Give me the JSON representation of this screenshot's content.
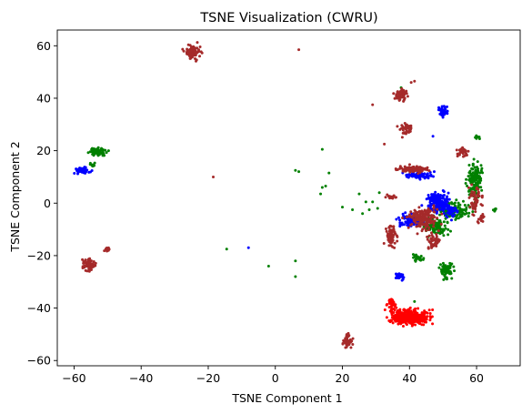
{
  "chart_data": {
    "type": "scatter",
    "title": "TSNE Visualization (CWRU)",
    "xlabel": "TSNE Component 1",
    "ylabel": "TSNE Component 2",
    "xlim": [
      -65,
      73
    ],
    "ylim": [
      -62,
      66
    ],
    "xticks": [
      -60,
      -40,
      -20,
      0,
      20,
      40,
      60
    ],
    "yticks": [
      -60,
      -40,
      -20,
      0,
      20,
      40,
      60
    ],
    "grid": false,
    "colors": {
      "red": "#ff0000",
      "green": "#008000",
      "blue": "#0000ff",
      "brown": "#a52a2a"
    },
    "clusters": [
      {
        "color": "brown",
        "cx": -25,
        "cy": 57.5,
        "sx": 1.6,
        "sy": 1.8,
        "n": 90
      },
      {
        "color": "brown",
        "cx": -55.5,
        "cy": -23.5,
        "sx": 1.3,
        "sy": 1.5,
        "n": 70
      },
      {
        "color": "brown",
        "cx": -50,
        "cy": -17.5,
        "sx": 0.6,
        "sy": 0.6,
        "n": 12
      },
      {
        "color": "brown",
        "cx": 21.5,
        "cy": -52.5,
        "sx": 0.9,
        "sy": 1.5,
        "n": 55
      },
      {
        "color": "blue",
        "cx": -57.5,
        "cy": 12.5,
        "sx": 1.4,
        "sy": 0.8,
        "n": 60
      },
      {
        "color": "green",
        "cx": -53,
        "cy": 19.5,
        "sx": 1.6,
        "sy": 1.0,
        "n": 55
      },
      {
        "color": "green",
        "cx": -54.5,
        "cy": 14.5,
        "sx": 0.6,
        "sy": 0.8,
        "n": 12
      },
      {
        "color": "red",
        "cx": 40,
        "cy": -43.5,
        "sx": 3.8,
        "sy": 1.8,
        "n": 420
      },
      {
        "color": "red",
        "cx": 34.5,
        "cy": -38.5,
        "sx": 0.9,
        "sy": 1.8,
        "n": 40
      },
      {
        "color": "blue",
        "cx": 37,
        "cy": -28,
        "sx": 0.9,
        "sy": 0.9,
        "n": 35
      },
      {
        "color": "brown",
        "cx": 37.5,
        "cy": 41.5,
        "sx": 1.3,
        "sy": 1.6,
        "n": 55
      },
      {
        "color": "blue",
        "cx": 50,
        "cy": 35,
        "sx": 0.8,
        "sy": 1.3,
        "n": 40
      },
      {
        "color": "brown",
        "cx": 39,
        "cy": 28.5,
        "sx": 1.2,
        "sy": 1.8,
        "n": 40
      },
      {
        "color": "brown",
        "cx": 41,
        "cy": 13,
        "sx": 3.0,
        "sy": 0.9,
        "n": 90
      },
      {
        "color": "blue",
        "cx": 43,
        "cy": 10.5,
        "sx": 3.0,
        "sy": 0.8,
        "n": 80
      },
      {
        "color": "brown",
        "cx": 34.5,
        "cy": 2.5,
        "sx": 1.0,
        "sy": 0.7,
        "n": 15
      },
      {
        "color": "blue",
        "cx": 48.5,
        "cy": 0.5,
        "sx": 2.2,
        "sy": 2.5,
        "n": 170
      },
      {
        "color": "brown",
        "cx": 44,
        "cy": -6,
        "sx": 3.2,
        "sy": 3.0,
        "n": 180
      },
      {
        "color": "blue",
        "cx": 40,
        "cy": -6.5,
        "sx": 2.2,
        "sy": 1.8,
        "n": 90
      },
      {
        "color": "brown",
        "cx": 34.5,
        "cy": -12.5,
        "sx": 1.2,
        "sy": 2.8,
        "n": 65
      },
      {
        "color": "green",
        "cx": 53,
        "cy": -3,
        "sx": 3.0,
        "sy": 2.5,
        "n": 120
      },
      {
        "color": "green",
        "cx": 59.5,
        "cy": 8.5,
        "sx": 1.6,
        "sy": 4.5,
        "n": 140
      },
      {
        "color": "brown",
        "cx": 56,
        "cy": 19.5,
        "sx": 1.0,
        "sy": 1.2,
        "n": 30
      },
      {
        "color": "brown",
        "cx": 59.5,
        "cy": 2,
        "sx": 1.2,
        "sy": 4.0,
        "n": 55
      },
      {
        "color": "green",
        "cx": 51,
        "cy": -25.5,
        "sx": 1.3,
        "sy": 2.0,
        "n": 80
      },
      {
        "color": "green",
        "cx": 42.5,
        "cy": -21,
        "sx": 1.0,
        "sy": 1.0,
        "n": 25
      },
      {
        "color": "brown",
        "cx": 47,
        "cy": -15,
        "sx": 1.3,
        "sy": 2.0,
        "n": 45
      },
      {
        "color": "green",
        "cx": 48,
        "cy": -9,
        "sx": 2.5,
        "sy": 2.0,
        "n": 90
      },
      {
        "color": "blue",
        "cx": 52,
        "cy": -3,
        "sx": 1.3,
        "sy": 1.8,
        "n": 45
      },
      {
        "color": "brown",
        "cx": 61.5,
        "cy": -6,
        "sx": 0.8,
        "sy": 1.2,
        "n": 15
      },
      {
        "color": "green",
        "cx": 60,
        "cy": 25,
        "sx": 0.6,
        "sy": 0.6,
        "n": 10
      },
      {
        "color": "green",
        "cx": 65.5,
        "cy": -2.5,
        "sx": 0.5,
        "sy": 0.5,
        "n": 8
      }
    ],
    "points": [
      {
        "color": "brown",
        "x": 7,
        "y": 58.5
      },
      {
        "color": "brown",
        "x": -18.5,
        "y": 10
      },
      {
        "color": "brown",
        "x": 29,
        "y": 37.5
      },
      {
        "color": "brown",
        "x": 32.5,
        "y": 22.5
      },
      {
        "color": "blue",
        "x": 47,
        "y": 25.5
      },
      {
        "color": "blue",
        "x": -8,
        "y": -17
      },
      {
        "color": "green",
        "x": 14,
        "y": 20.5
      },
      {
        "color": "green",
        "x": 16,
        "y": 11.5
      },
      {
        "color": "green",
        "x": 6,
        "y": 12.5
      },
      {
        "color": "green",
        "x": 7,
        "y": 12
      },
      {
        "color": "green",
        "x": 14,
        "y": 6
      },
      {
        "color": "green",
        "x": 15,
        "y": 6.5
      },
      {
        "color": "green",
        "x": 13.5,
        "y": 3.5
      },
      {
        "color": "green",
        "x": 20,
        "y": -1.5
      },
      {
        "color": "green",
        "x": 23,
        "y": -2.5
      },
      {
        "color": "green",
        "x": 27,
        "y": 0.5
      },
      {
        "color": "green",
        "x": 29,
        "y": 0.5
      },
      {
        "color": "green",
        "x": 28,
        "y": -2.5
      },
      {
        "color": "green",
        "x": 25,
        "y": 3.5
      },
      {
        "color": "green",
        "x": 26,
        "y": -4
      },
      {
        "color": "green",
        "x": 30.5,
        "y": -2
      },
      {
        "color": "green",
        "x": 31,
        "y": 4
      },
      {
        "color": "green",
        "x": 6,
        "y": -22
      },
      {
        "color": "green",
        "x": 6,
        "y": -28
      },
      {
        "color": "green",
        "x": -14.5,
        "y": -17.5
      },
      {
        "color": "green",
        "x": -2,
        "y": -24
      },
      {
        "color": "green",
        "x": 41.5,
        "y": -37.5
      },
      {
        "color": "green",
        "x": 37.5,
        "y": 44
      },
      {
        "color": "brown",
        "x": 41.5,
        "y": 46.5
      },
      {
        "color": "brown",
        "x": 40.5,
        "y": 46
      }
    ]
  }
}
